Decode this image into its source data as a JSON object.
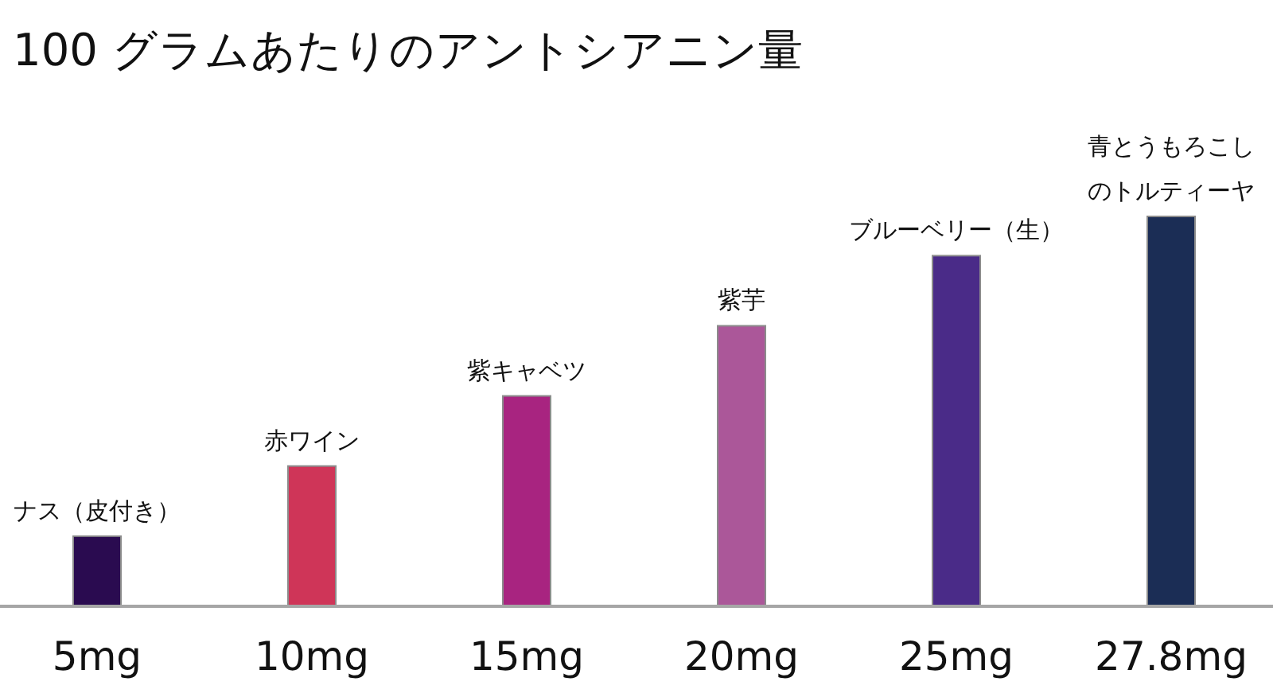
{
  "chart_data": {
    "type": "bar",
    "title": "100 グラムあたりのアントシアニン量",
    "categories": [
      "ナス（皮付き）",
      "赤ワイン",
      "紫キャベツ",
      "紫芋",
      "ブルーベリー（生）",
      "青とうもろこしのトルティーヤ"
    ],
    "values": [
      5,
      10,
      15,
      20,
      25,
      27.8
    ],
    "value_labels": [
      "5mg",
      "10mg",
      "15mg",
      "20mg",
      "25mg",
      "27.8mg"
    ],
    "colors": [
      "#2a0b50",
      "#cf3558",
      "#a82480",
      "#ab5799",
      "#4a2b88",
      "#1b2d55"
    ]
  }
}
